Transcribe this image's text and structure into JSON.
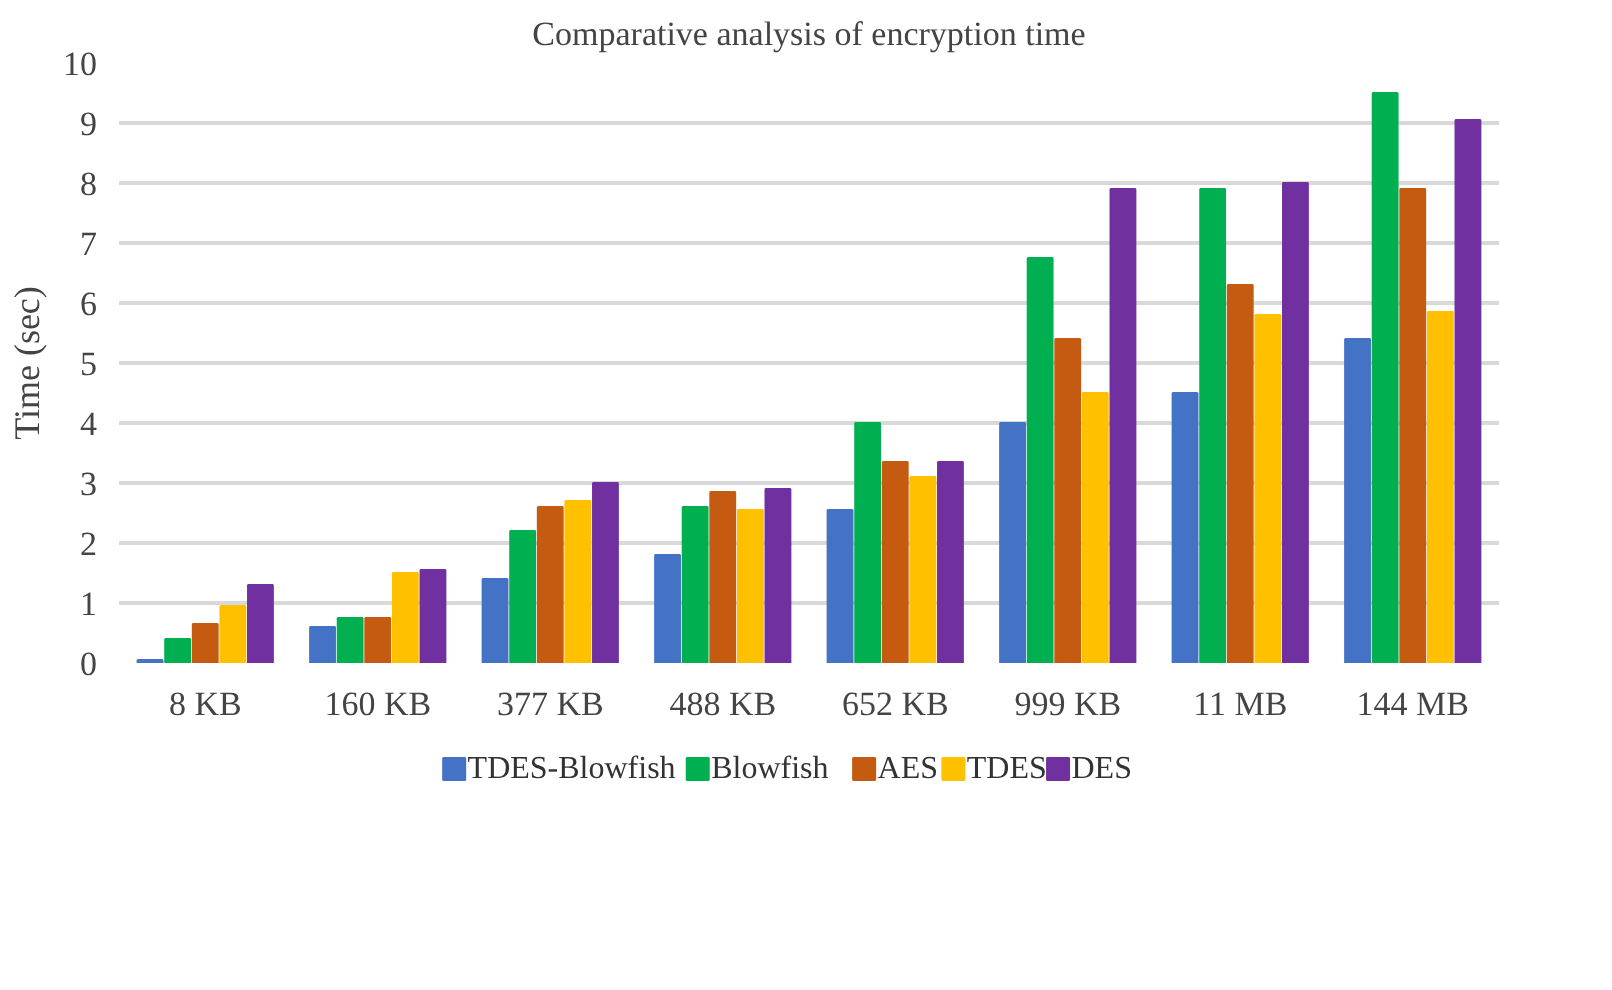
{
  "chart_data": {
    "type": "bar",
    "title": "Comparative analysis of encryption time",
    "ylabel": "Time (sec)",
    "categories": [
      "8 KB",
      "160 KB",
      "377 KB",
      "488 KB",
      "652 KB",
      "999 KB",
      "11 MB",
      "144 MB"
    ],
    "series": [
      {
        "name": "TDES-Blowfish",
        "color": "#4472c4",
        "values": [
          0.05,
          0.6,
          1.4,
          1.8,
          2.55,
          4.0,
          4.5,
          5.4
        ]
      },
      {
        "name": "Blowfish",
        "color": "#00b050",
        "values": [
          0.4,
          0.75,
          2.2,
          2.6,
          4.0,
          6.75,
          7.9,
          9.5
        ]
      },
      {
        "name": "AES",
        "color": "#c55a11",
        "values": [
          0.65,
          0.75,
          2.6,
          2.85,
          3.35,
          5.4,
          6.3,
          7.9
        ]
      },
      {
        "name": "TDES",
        "color": "#ffc000",
        "values": [
          0.95,
          1.5,
          2.7,
          2.55,
          3.1,
          4.5,
          5.8,
          5.85
        ]
      },
      {
        "name": "DES",
        "color": "#7030a0",
        "values": [
          1.3,
          1.55,
          3.0,
          2.9,
          3.35,
          7.9,
          8.0,
          9.05
        ]
      }
    ],
    "ylim": [
      0,
      10
    ],
    "yticks": [
      0,
      1,
      2,
      3,
      4,
      5,
      6,
      7,
      8,
      9,
      10
    ],
    "grid": "y",
    "legend": "bottom"
  }
}
